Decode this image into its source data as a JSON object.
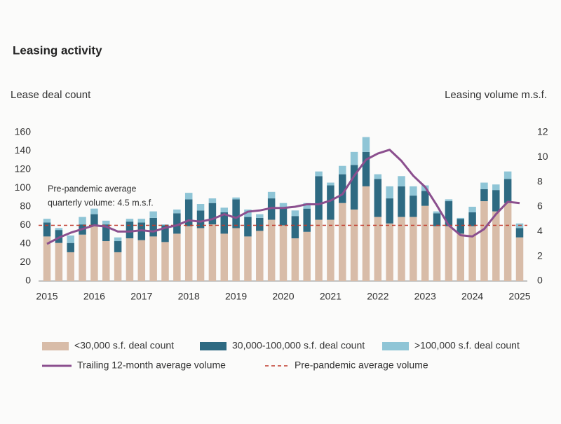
{
  "chart_data": {
    "type": "bar",
    "stacked": true,
    "title": "Leasing activity",
    "y_label": "Lease deal count",
    "y2_label": "Leasing volume m.s.f.",
    "categories": [
      "2015",
      null,
      null,
      null,
      "2016",
      null,
      null,
      null,
      "2017",
      null,
      null,
      null,
      "2018",
      null,
      null,
      null,
      "2019",
      null,
      null,
      null,
      "2020",
      null,
      null,
      null,
      "2021",
      null,
      null,
      null,
      "2022",
      null,
      null,
      null,
      "2023",
      null,
      null,
      null,
      "2024",
      null,
      null,
      null,
      "2025"
    ],
    "series": [
      {
        "name": "<30,000 s.f. deal count",
        "color": "#d8bca8",
        "values": [
          48,
          41,
          31,
          50,
          59,
          43,
          31,
          46,
          44,
          48,
          42,
          51,
          59,
          57,
          61,
          51,
          57,
          48,
          54,
          66,
          60,
          46,
          53,
          66,
          66,
          84,
          77,
          102,
          69,
          62,
          69,
          69,
          81,
          59,
          59,
          51,
          59,
          86,
          75,
          84,
          47
        ]
      },
      {
        "name": "30,000-100,000 s.f. deal count",
        "color": "#2e6a82",
        "values": [
          15,
          14,
          10,
          11,
          13,
          18,
          12,
          18,
          19,
          20,
          18,
          22,
          29,
          19,
          23,
          23,
          31,
          21,
          14,
          23,
          19,
          24,
          25,
          47,
          37,
          31,
          48,
          37,
          41,
          27,
          33,
          23,
          16,
          14,
          27,
          16,
          15,
          13,
          23,
          26,
          10
        ]
      },
      {
        "name": ">100,000 s.f. deal count",
        "color": "#8fc5d6",
        "values": [
          4,
          2,
          8,
          8,
          6,
          4,
          4,
          3,
          4,
          7,
          1,
          4,
          7,
          7,
          5,
          5,
          2,
          8,
          4,
          7,
          5,
          6,
          6,
          5,
          3,
          9,
          14,
          16,
          5,
          13,
          11,
          10,
          6,
          2,
          2,
          1,
          6,
          7,
          6,
          8,
          5
        ]
      },
      {
        "name": "Trailing 12-month average volume",
        "color": "#8b4f8e",
        "type": "line",
        "axis": "y2",
        "values": [
          3.0,
          3.5,
          3.9,
          4.2,
          4.5,
          4.4,
          4.0,
          4.0,
          4.1,
          4.0,
          4.3,
          4.5,
          4.9,
          4.8,
          5.0,
          5.4,
          5.1,
          5.6,
          5.7,
          5.9,
          5.9,
          6.0,
          6.2,
          6.2,
          6.5,
          7.0,
          8.5,
          9.8,
          10.3,
          10.6,
          9.7,
          8.5,
          7.6,
          6.1,
          4.5,
          3.7,
          3.6,
          4.2,
          5.4,
          6.4,
          6.3
        ]
      }
    ],
    "reference_line": {
      "name": "Pre-pandemic average volume",
      "value": 4.5,
      "axis": "y2",
      "color": "#c0392b"
    },
    "annotation": [
      "Pre-pandemic average",
      "quarterly volume: 4.5 m.s.f."
    ],
    "ylim": [
      0,
      160
    ],
    "yticks": [
      0,
      20,
      40,
      60,
      80,
      100,
      120,
      140,
      160
    ],
    "y2lim": [
      0,
      12
    ],
    "y2ticks": [
      0,
      2,
      4,
      6,
      8,
      10,
      12
    ],
    "grid": false
  }
}
